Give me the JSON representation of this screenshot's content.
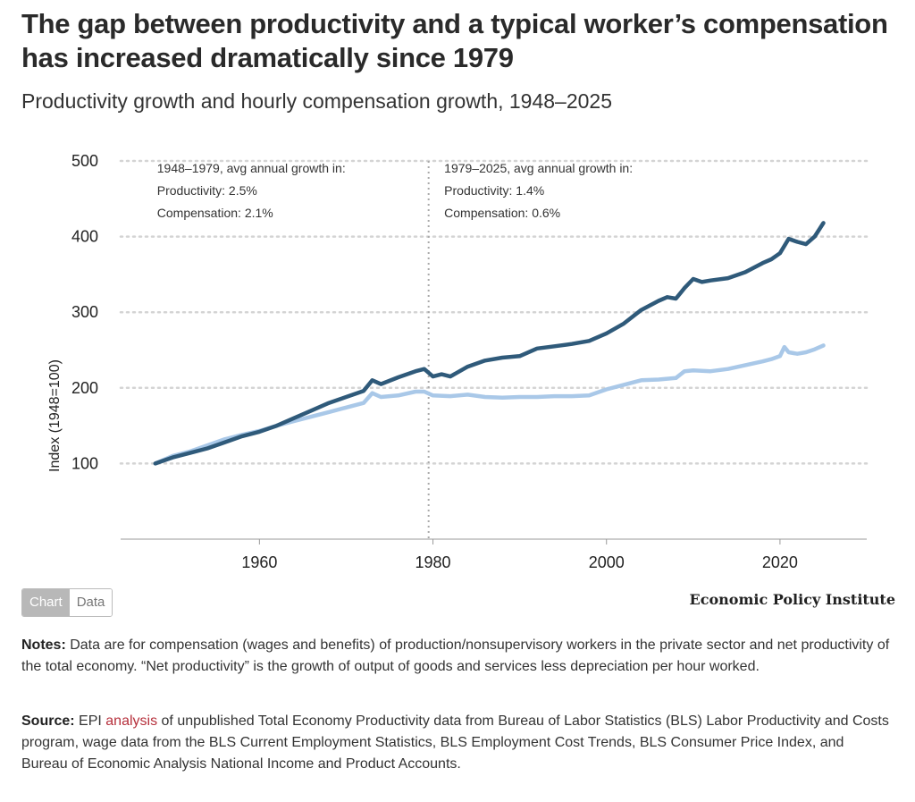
{
  "header": {
    "title": "The gap between productivity and a typical worker’s compensation has increased dramatically since 1979",
    "subtitle": "Productivity growth and hourly compensation growth, 1948–2025"
  },
  "chart_data": {
    "type": "line",
    "ylabel": "Index (1948=100)",
    "xlim": [
      1944,
      2030
    ],
    "ylim": [
      0,
      500
    ],
    "x_ticks": [
      1960,
      1980,
      2000,
      2020
    ],
    "y_ticks": [
      100,
      200,
      300,
      400,
      500
    ],
    "grid": "horizontal dotted",
    "reference_line_x": 1979.5,
    "colors": {
      "productivity": "#2f5a7a",
      "compensation": "#a9c8e8"
    },
    "annotations": [
      {
        "lines": [
          "1948–1979, avg annual growth in:",
          "Productivity: 2.5%",
          "Compensation: 2.1%"
        ],
        "anchor_x": 1948.2
      },
      {
        "lines": [
          "1979–2025, avg annual growth in:",
          "Productivity: 1.4%",
          "Compensation: 0.6%"
        ],
        "anchor_x": 1981.3
      }
    ],
    "series": [
      {
        "key": "productivity",
        "x": [
          1948,
          1950,
          1952,
          1954,
          1956,
          1958,
          1960,
          1962,
          1964,
          1966,
          1968,
          1970,
          1972,
          1973,
          1974,
          1976,
          1978,
          1979,
          1980,
          1981,
          1982,
          1984,
          1986,
          1988,
          1990,
          1992,
          1994,
          1996,
          1998,
          2000,
          2002,
          2004,
          2006,
          2007,
          2008,
          2009,
          2010,
          2011,
          2012,
          2014,
          2016,
          2018,
          2019,
          2020,
          2021,
          2022,
          2023,
          2024,
          2025
        ],
        "values": [
          100,
          108,
          114,
          120,
          128,
          136,
          142,
          150,
          160,
          170,
          180,
          188,
          196,
          210,
          205,
          214,
          222,
          225,
          215,
          218,
          215,
          228,
          236,
          240,
          242,
          252,
          255,
          258,
          262,
          272,
          285,
          303,
          315,
          320,
          318,
          332,
          344,
          340,
          342,
          345,
          353,
          365,
          370,
          378,
          397,
          393,
          390,
          400,
          418
        ]
      },
      {
        "key": "compensation",
        "x": [
          1948,
          1950,
          1952,
          1954,
          1956,
          1958,
          1960,
          1962,
          1964,
          1966,
          1968,
          1970,
          1972,
          1973,
          1974,
          1976,
          1978,
          1979,
          1980,
          1982,
          1984,
          1986,
          1988,
          1990,
          1992,
          1994,
          1996,
          1998,
          2000,
          2002,
          2004,
          2006,
          2008,
          2009,
          2010,
          2012,
          2014,
          2016,
          2018,
          2019,
          2020,
          2020.5,
          2021,
          2022,
          2023,
          2024,
          2025
        ],
        "values": [
          100,
          110,
          116,
          124,
          132,
          138,
          143,
          150,
          156,
          162,
          168,
          174,
          180,
          193,
          188,
          190,
          195,
          195,
          190,
          189,
          191,
          188,
          187,
          188,
          188,
          189,
          189,
          190,
          198,
          204,
          210,
          211,
          213,
          222,
          223,
          222,
          225,
          230,
          235,
          238,
          242,
          254,
          247,
          245,
          247,
          251,
          256
        ]
      }
    ]
  },
  "controls": {
    "chart_tab": "Chart",
    "data_tab": "Data"
  },
  "brand": "Economic Policy Institute",
  "notes": {
    "label": "Notes:",
    "text": " Data are for compensation (wages and benefits) of production/nonsupervisory workers in the private sector and net productivity of the total economy. “Net productivity” is the growth of output of goods and services less depreciation per hour worked."
  },
  "source": {
    "label": "Source:",
    "text_before": " EPI ",
    "link": "analysis",
    "text_after": " of unpublished Total Economy Productivity data from Bureau of Labor Statistics (BLS) Labor Productivity and Costs program, wage data from the BLS Current Employment Statistics, BLS Employment Cost Trends, BLS Consumer Price Index, and Bureau of Economic Analysis National Income and Product Accounts."
  }
}
